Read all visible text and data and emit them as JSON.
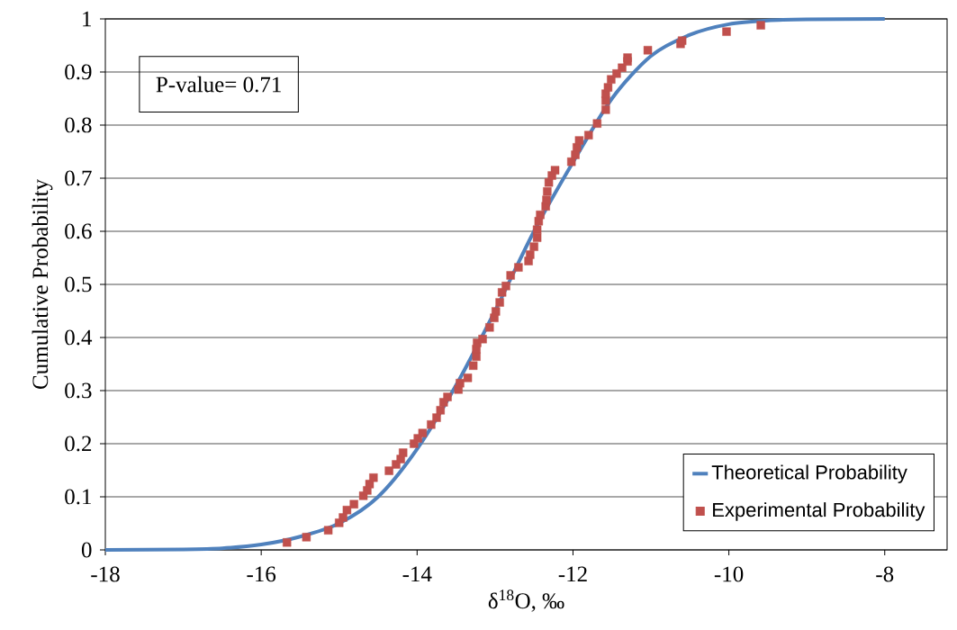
{
  "chart_data": {
    "type": "line",
    "xlabel": "δ$^{18}$O, ‰",
    "ylabel": "Cumulative Probability",
    "annotations": [
      "P-value= 0.71"
    ],
    "xlim": [
      -18,
      -7.2
    ],
    "xticks": [
      -18,
      -16,
      -14,
      -12,
      -10,
      -8
    ],
    "ylim": [
      0,
      1
    ],
    "yticks": [
      0,
      0.1,
      0.2,
      0.3,
      0.4,
      0.5,
      0.6,
      0.7,
      0.8,
      0.9,
      1
    ],
    "grid": "y",
    "legend": "bottom right",
    "series": [
      {
        "name": "Theoretical Probability",
        "color": "#4f81bd",
        "marker": "none",
        "line_style": "solid",
        "x": [
          -18,
          -17,
          -16.5,
          -16,
          -15.5,
          -15,
          -14.5,
          -14,
          -13.5,
          -13,
          -12.5,
          -12,
          -11.5,
          -11,
          -10.5,
          -10,
          -9.5,
          -9,
          -8
        ],
        "values": [
          0,
          0.001,
          0.003,
          0.01,
          0.025,
          0.05,
          0.1,
          0.19,
          0.31,
          0.45,
          0.6,
          0.73,
          0.85,
          0.93,
          0.97,
          0.99,
          0.997,
          0.999,
          1
        ]
      },
      {
        "name": "Experimental Probability",
        "type": "scatter",
        "color": "#c0504d",
        "marker": "square",
        "x": [
          -15.67,
          -15.42,
          -15.14,
          -15.0,
          -14.95,
          -14.9,
          -14.81,
          -14.69,
          -14.64,
          -14.61,
          -14.56,
          -14.36,
          -14.27,
          -14.21,
          -14.18,
          -14.04,
          -13.99,
          -13.93,
          -13.82,
          -13.75,
          -13.7,
          -13.66,
          -13.61,
          -13.47,
          -13.45,
          -13.35,
          -13.28,
          -13.24,
          -13.24,
          -13.23,
          -13.16,
          -13.07,
          -13.01,
          -12.99,
          -12.94,
          -12.91,
          -12.86,
          -12.8,
          -12.7,
          -12.57,
          -12.55,
          -12.5,
          -12.46,
          -12.46,
          -12.44,
          -12.42,
          -12.35,
          -12.34,
          -12.33,
          -12.31,
          -12.27,
          -12.23,
          -12.02,
          -11.97,
          -11.95,
          -11.92,
          -11.8,
          -11.69,
          -11.58,
          -11.58,
          -11.58,
          -11.55,
          -11.51,
          -11.44,
          -11.37,
          -11.3,
          -11.3,
          -11.04,
          -10.62,
          -10.6,
          -10.03,
          -9.59
        ],
        "values": [
          0.014,
          0.024,
          0.037,
          0.051,
          0.061,
          0.075,
          0.086,
          0.102,
          0.112,
          0.124,
          0.136,
          0.149,
          0.161,
          0.171,
          0.183,
          0.2,
          0.21,
          0.22,
          0.236,
          0.249,
          0.263,
          0.278,
          0.288,
          0.302,
          0.314,
          0.324,
          0.347,
          0.364,
          0.378,
          0.39,
          0.397,
          0.419,
          0.437,
          0.449,
          0.466,
          0.485,
          0.497,
          0.517,
          0.532,
          0.544,
          0.556,
          0.571,
          0.588,
          0.603,
          0.619,
          0.631,
          0.647,
          0.659,
          0.675,
          0.692,
          0.705,
          0.715,
          0.731,
          0.744,
          0.758,
          0.771,
          0.781,
          0.803,
          0.829,
          0.846,
          0.859,
          0.871,
          0.886,
          0.897,
          0.908,
          0.92,
          0.927,
          0.941,
          0.953,
          0.959,
          0.976,
          0.988
        ]
      }
    ]
  }
}
